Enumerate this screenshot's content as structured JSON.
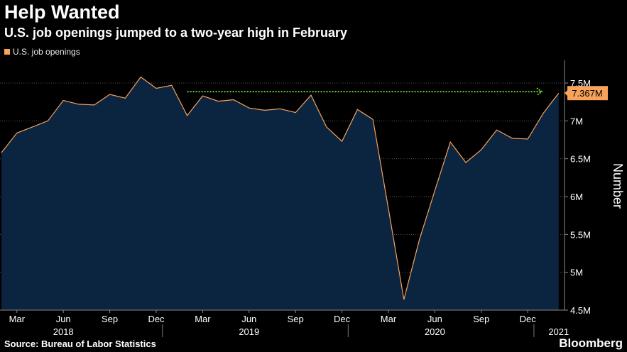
{
  "header": {
    "title": "Help Wanted",
    "subtitle": "U.S. job openings jumped to a two-year high in February"
  },
  "legend": {
    "label": "U.S. job openings"
  },
  "footer": {
    "source": "Source: Bureau of Labor Statistics",
    "brand": "Bloomberg"
  },
  "colors": {
    "line": "#f7a35c",
    "area": "#0b2440",
    "arrow": "#6fd12f",
    "grid": "#555555"
  },
  "chart_data": {
    "type": "area",
    "title": "Help Wanted",
    "ylabel": "Number",
    "xlabel": "",
    "ylim": [
      4.5,
      7.8
    ],
    "yticks": [
      4.5,
      5,
      5.5,
      6,
      6.5,
      7,
      7.5
    ],
    "ytick_labels": [
      "4.5M",
      "5M",
      "5.5M",
      "6M",
      "6.5M",
      "7M",
      "7.5M"
    ],
    "months": [
      "2018-02",
      "2018-03",
      "2018-04",
      "2018-05",
      "2018-06",
      "2018-07",
      "2018-08",
      "2018-09",
      "2018-10",
      "2018-11",
      "2018-12",
      "2019-01",
      "2019-02",
      "2019-03",
      "2019-04",
      "2019-05",
      "2019-06",
      "2019-07",
      "2019-08",
      "2019-09",
      "2019-10",
      "2019-11",
      "2019-12",
      "2020-01",
      "2020-02",
      "2020-03",
      "2020-04",
      "2020-05",
      "2020-06",
      "2020-07",
      "2020-08",
      "2020-09",
      "2020-10",
      "2020-11",
      "2020-12",
      "2021-01",
      "2021-02"
    ],
    "values": [
      6.58,
      6.84,
      6.92,
      7.0,
      7.27,
      7.22,
      7.21,
      7.35,
      7.3,
      7.58,
      7.43,
      7.47,
      7.07,
      7.33,
      7.26,
      7.28,
      7.17,
      7.14,
      7.16,
      7.11,
      7.34,
      6.92,
      6.73,
      7.15,
      7.02,
      5.84,
      4.64,
      5.43,
      6.08,
      6.72,
      6.45,
      6.62,
      6.88,
      6.77,
      6.76,
      7.1,
      7.367
    ],
    "month_ticks": [
      {
        "month": "2018-03",
        "label": "Mar"
      },
      {
        "month": "2018-06",
        "label": "Jun"
      },
      {
        "month": "2018-09",
        "label": "Sep"
      },
      {
        "month": "2018-12",
        "label": "Dec"
      },
      {
        "month": "2019-03",
        "label": "Mar"
      },
      {
        "month": "2019-06",
        "label": "Jun"
      },
      {
        "month": "2019-09",
        "label": "Sep"
      },
      {
        "month": "2019-12",
        "label": "Dec"
      },
      {
        "month": "2020-03",
        "label": "Mar"
      },
      {
        "month": "2020-06",
        "label": "Jun"
      },
      {
        "month": "2020-09",
        "label": "Sep"
      },
      {
        "month": "2020-12",
        "label": "Dec"
      }
    ],
    "year_labels": [
      {
        "month": "2018-06",
        "label": "2018"
      },
      {
        "month": "2019-06",
        "label": "2019"
      },
      {
        "month": "2020-06",
        "label": "2020"
      },
      {
        "month": "2021-02",
        "label": "2021"
      }
    ],
    "year_separators": [
      "2019-01",
      "2020-01",
      "2021-01"
    ],
    "annotation": {
      "label": "7.367M",
      "value": 7.367,
      "arrow_from_month": "2019-02",
      "arrow_to_month": "2021-01"
    }
  }
}
